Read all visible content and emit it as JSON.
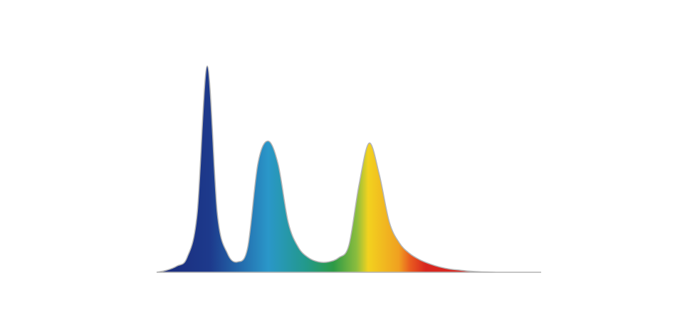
{
  "chart_data": {
    "type": "area",
    "x": [
      400,
      410,
      420,
      430,
      440,
      450,
      460,
      470,
      480,
      490,
      500,
      510,
      520,
      530,
      540,
      550,
      560,
      570,
      580,
      590,
      600,
      610,
      620,
      630,
      640,
      650,
      660,
      670,
      680,
      690,
      700,
      710,
      720,
      730,
      740,
      750,
      760,
      770,
      780
    ],
    "values": [
      0.0,
      0.01,
      0.03,
      0.07,
      0.28,
      0.99,
      0.28,
      0.09,
      0.05,
      0.12,
      0.52,
      0.63,
      0.52,
      0.24,
      0.12,
      0.07,
      0.05,
      0.05,
      0.07,
      0.13,
      0.42,
      0.62,
      0.47,
      0.24,
      0.14,
      0.09,
      0.06,
      0.04,
      0.025,
      0.015,
      0.01,
      0.005,
      0.002,
      0.001,
      0.0,
      0.0,
      0.0,
      0.0,
      0.0
    ],
    "peaks": [
      {
        "x": 450,
        "value": 1.0
      },
      {
        "x": 510,
        "value": 0.63
      },
      {
        "x": 610,
        "value": 0.62
      }
    ],
    "xlim": [
      400,
      780
    ],
    "ylim": [
      0,
      1
    ],
    "gradient_colors": [
      "#1a2a7a",
      "#1d3a8c",
      "#2a97c9",
      "#22998a",
      "#2d9a46",
      "#8bbd3e",
      "#f2d21f",
      "#f0a020",
      "#e85a1f",
      "#d8261f",
      "#d42222"
    ],
    "outline_color": "#b4b4b4",
    "baseline_color": "#b8b8b8",
    "grid": false,
    "legend": "none"
  }
}
